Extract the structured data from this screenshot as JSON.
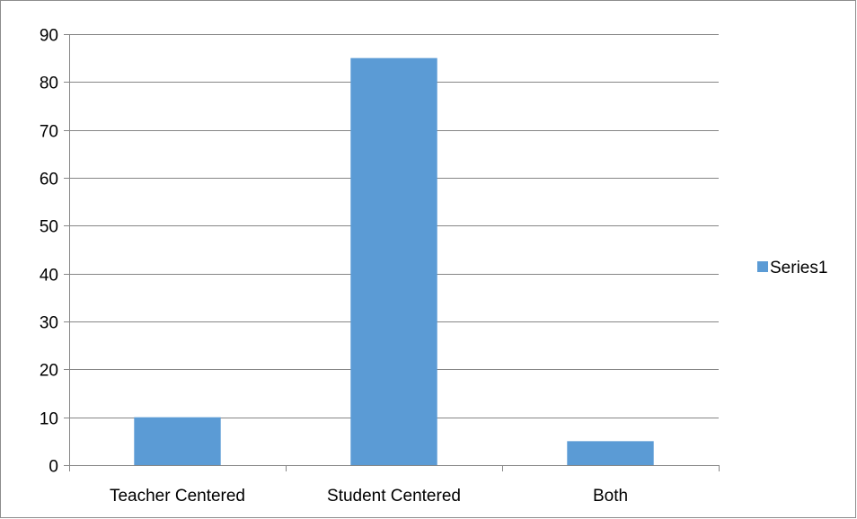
{
  "chart_data": {
    "type": "bar",
    "categories": [
      "Teacher Centered",
      "Student Centered",
      "Both"
    ],
    "series": [
      {
        "name": "Series1",
        "values": [
          10,
          85,
          5
        ],
        "color": "#5b9bd5"
      }
    ],
    "ylim": [
      0,
      90
    ],
    "yticks": [
      0,
      10,
      20,
      30,
      40,
      50,
      60,
      70,
      80,
      90
    ],
    "grid": true,
    "legend_position": "right"
  }
}
